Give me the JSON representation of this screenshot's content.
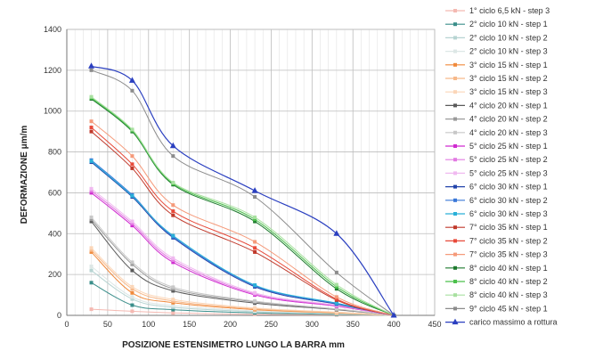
{
  "chart_data": {
    "type": "line",
    "title": "",
    "xlabel": "POSIZIONE ESTENSIMETRO LUNGO LA BARRA mm",
    "ylabel": "DEFORMAZIONE μm/m",
    "xlim": [
      0,
      450
    ],
    "ylim": [
      0,
      1400
    ],
    "xticks": [
      0,
      50,
      100,
      150,
      200,
      250,
      300,
      350,
      400,
      450
    ],
    "yticks": [
      0,
      200,
      400,
      600,
      800,
      1000,
      1200,
      1400
    ],
    "grid": true,
    "legend_position": "right",
    "x": [
      30,
      80,
      130,
      230,
      330,
      400
    ],
    "series": [
      {
        "name": "1° ciclo 6,5 kN - step 3",
        "color": "#f4b9b2",
        "values": [
          30,
          20,
          12,
          5,
          2,
          0
        ]
      },
      {
        "name": "2° ciclo 10 kN - step 1",
        "color": "#3a8e8a",
        "values": [
          160,
          50,
          28,
          12,
          5,
          0
        ]
      },
      {
        "name": "2° ciclo 10 kN - step 2",
        "color": "#b7d4d2",
        "values": [
          220,
          80,
          40,
          18,
          8,
          0
        ]
      },
      {
        "name": "2° ciclo 10 kN - step 3",
        "color": "#dde7e6",
        "values": [
          240,
          90,
          48,
          22,
          10,
          0
        ]
      },
      {
        "name": "3° ciclo 15 kN - step 1",
        "color": "#f08a3c",
        "values": [
          310,
          110,
          62,
          28,
          12,
          0
        ]
      },
      {
        "name": "3° ciclo 15 kN - step 2",
        "color": "#f7b98a",
        "values": [
          320,
          130,
          70,
          32,
          14,
          0
        ]
      },
      {
        "name": "3° ciclo 15 kN - step 3",
        "color": "#fbd6b8",
        "values": [
          330,
          140,
          78,
          36,
          16,
          0
        ]
      },
      {
        "name": "4° ciclo 20 kN - step 1",
        "color": "#5a5a5a",
        "values": [
          460,
          220,
          120,
          60,
          28,
          0
        ]
      },
      {
        "name": "4° ciclo 20 kN - step 2",
        "color": "#9a9a9a",
        "values": [
          470,
          250,
          130,
          66,
          30,
          0
        ]
      },
      {
        "name": "4° ciclo 20 kN - step 3",
        "color": "#c8c8c8",
        "values": [
          480,
          260,
          138,
          70,
          32,
          0
        ]
      },
      {
        "name": "5° ciclo 25 kN - step 1",
        "color": "#d02bd0",
        "values": [
          600,
          440,
          260,
          100,
          45,
          0
        ]
      },
      {
        "name": "5° ciclo 25 kN - step 2",
        "color": "#e27be2",
        "values": [
          610,
          450,
          270,
          105,
          48,
          0
        ]
      },
      {
        "name": "5° ciclo 25 kN - step 3",
        "color": "#f0b9f0",
        "values": [
          620,
          460,
          280,
          110,
          50,
          0
        ]
      },
      {
        "name": "6° ciclo 30 kN - step 1",
        "color": "#2244aa",
        "values": [
          750,
          580,
          380,
          140,
          55,
          0
        ]
      },
      {
        "name": "6° ciclo 30 kN - step 2",
        "color": "#3a78d8",
        "values": [
          760,
          590,
          385,
          145,
          58,
          0
        ]
      },
      {
        "name": "6° ciclo 30 kN - step 3",
        "color": "#2ab0d8",
        "values": [
          755,
          585,
          390,
          148,
          60,
          0
        ]
      },
      {
        "name": "7° ciclo 35 kN - step 1",
        "color": "#c0392b",
        "values": [
          900,
          720,
          490,
          310,
          75,
          0
        ]
      },
      {
        "name": "7° ciclo 35 kN - step 2",
        "color": "#e84a3a",
        "values": [
          920,
          740,
          510,
          330,
          80,
          0
        ]
      },
      {
        "name": "7° ciclo 35 kN - step 3",
        "color": "#f59a7a",
        "values": [
          950,
          780,
          540,
          360,
          90,
          0
        ]
      },
      {
        "name": "8° ciclo 40 kN - step 1",
        "color": "#1e7a2e",
        "values": [
          1060,
          900,
          640,
          460,
          130,
          0
        ]
      },
      {
        "name": "8° ciclo 40 kN - step 2",
        "color": "#4cc04c",
        "values": [
          1065,
          905,
          645,
          470,
          140,
          0
        ]
      },
      {
        "name": "8° ciclo 40 kN - step 3",
        "color": "#a8e0a0",
        "values": [
          1070,
          910,
          650,
          480,
          150,
          0
        ]
      },
      {
        "name": "9° ciclo 45 kN - step 1",
        "color": "#8c8c8c",
        "values": [
          1200,
          1100,
          780,
          580,
          210,
          0
        ]
      },
      {
        "name": "carico massimo a rottura",
        "color": "#2a3fc0",
        "marker": "triangle",
        "values": [
          1220,
          1150,
          830,
          610,
          400,
          0
        ]
      }
    ]
  }
}
